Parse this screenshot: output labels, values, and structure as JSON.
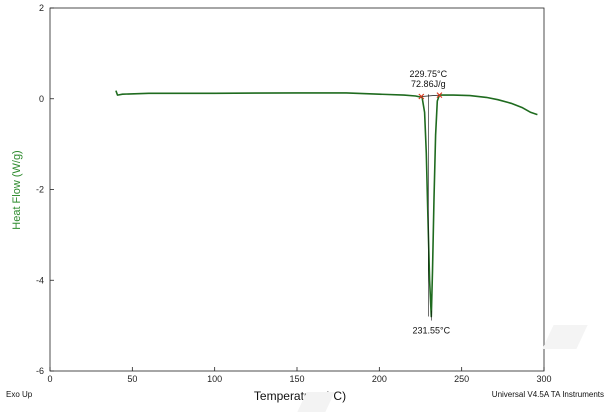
{
  "chart_data": {
    "type": "line",
    "title": "",
    "xlabel": "Temperature (°C)",
    "ylabel": "Heat Flow (W/g)",
    "xlim": [
      0,
      300
    ],
    "ylim": [
      -6,
      2
    ],
    "x_ticks": [
      0,
      50,
      100,
      150,
      200,
      250,
      300
    ],
    "y_ticks": [
      2,
      0,
      -2,
      -4,
      -6
    ],
    "grid": false,
    "series": [
      {
        "color": "#1f6b1f",
        "points": [
          [
            40,
            0.18
          ],
          [
            41,
            0.08
          ],
          [
            44,
            0.1
          ],
          [
            60,
            0.12
          ],
          [
            100,
            0.12
          ],
          [
            150,
            0.13
          ],
          [
            180,
            0.13
          ],
          [
            200,
            0.1
          ],
          [
            215,
            0.08
          ],
          [
            222,
            0.06
          ],
          [
            226,
            0.03
          ],
          [
            227.5,
            -0.3
          ],
          [
            228.5,
            -1.2
          ],
          [
            229.5,
            -2.6
          ],
          [
            230.5,
            -4.0
          ],
          [
            231.55,
            -4.8
          ],
          [
            232.3,
            -3.8
          ],
          [
            233.2,
            -2.2
          ],
          [
            234.2,
            -0.8
          ],
          [
            235.2,
            -0.05
          ],
          [
            236.5,
            0.08
          ],
          [
            245,
            0.08
          ],
          [
            255,
            0.07
          ],
          [
            265,
            0.03
          ],
          [
            272,
            -0.02
          ],
          [
            280,
            -0.1
          ],
          [
            287,
            -0.2
          ],
          [
            292,
            -0.3
          ],
          [
            296,
            -0.35
          ]
        ]
      }
    ],
    "annotations": {
      "onset_label": "229.75°C",
      "enthalpy_label": "72.86J/g",
      "peak_label": "231.55°C",
      "onset_x": 229.75,
      "peak_x": 231.55,
      "peak_y": -4.8,
      "integration_start": [
        225.5,
        0.05
      ],
      "integration_end": [
        236.5,
        0.08
      ]
    }
  },
  "footer": {
    "left": "Exo Up",
    "right": "Universal V4.5A TA Instruments"
  }
}
